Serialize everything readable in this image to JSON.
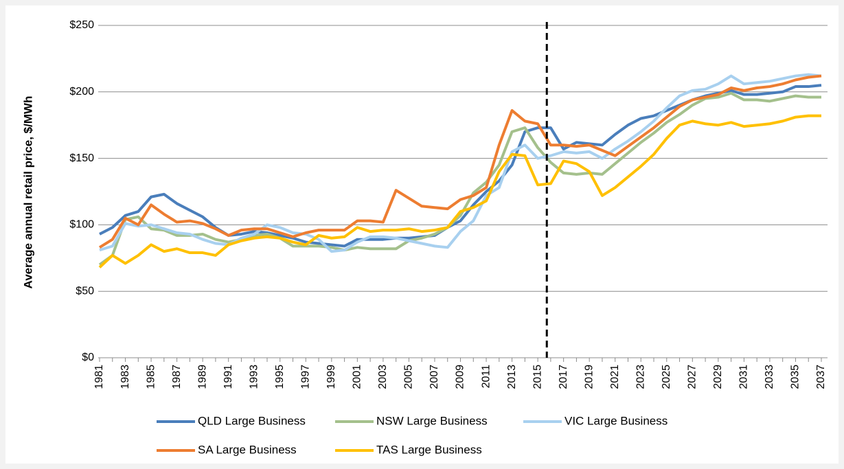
{
  "chart_data": {
    "type": "line",
    "y_label": "Average annual retail price, $/MWh",
    "x": [
      1981,
      1982,
      1983,
      1984,
      1985,
      1986,
      1987,
      1988,
      1989,
      1990,
      1991,
      1992,
      1993,
      1994,
      1995,
      1996,
      1997,
      1998,
      1999,
      2000,
      2001,
      2002,
      2003,
      2004,
      2005,
      2006,
      2007,
      2008,
      2009,
      2010,
      2011,
      2012,
      2013,
      2014,
      2015,
      2016,
      2017,
      2018,
      2019,
      2020,
      2021,
      2022,
      2023,
      2024,
      2025,
      2026,
      2027,
      2028,
      2029,
      2030,
      2031,
      2032,
      2033,
      2034,
      2035,
      2036,
      2037
    ],
    "xlim": [
      1981,
      2037
    ],
    "xticks": [
      1981,
      1983,
      1985,
      1987,
      1989,
      1991,
      1993,
      1995,
      1997,
      1999,
      2001,
      2003,
      2005,
      2007,
      2009,
      2011,
      2013,
      2015,
      2017,
      2019,
      2021,
      2023,
      2025,
      2027,
      2029,
      2031,
      2033,
      2035,
      2037
    ],
    "ylim": [
      0,
      250
    ],
    "yticks": [
      {
        "value": 0,
        "label": "$0"
      },
      {
        "value": 50,
        "label": "$50"
      },
      {
        "value": 100,
        "label": "$100"
      },
      {
        "value": 150,
        "label": "$150"
      },
      {
        "value": 200,
        "label": "$200"
      },
      {
        "value": 250,
        "label": "$250"
      }
    ],
    "grid": true,
    "vline": 2015.7,
    "series": [
      {
        "name": "QLD Large Business",
        "color": "#4a7ebb",
        "values": [
          93,
          98,
          107,
          110,
          121,
          123,
          116,
          111,
          106,
          98,
          92,
          93,
          95,
          94,
          92,
          90,
          87,
          86,
          85,
          84,
          89,
          89,
          89,
          90,
          90,
          91,
          92,
          98,
          103,
          115,
          125,
          133,
          145,
          170,
          173,
          173,
          157,
          162,
          161,
          160,
          168,
          175,
          180,
          182,
          186,
          190,
          194,
          197,
          199,
          201,
          198,
          198,
          199,
          200,
          204,
          204,
          205
        ]
      },
      {
        "name": "NSW Large Business",
        "color": "#a4c08c",
        "values": [
          70,
          77,
          104,
          106,
          97,
          96,
          92,
          92,
          93,
          89,
          87,
          89,
          92,
          93,
          90,
          84,
          84,
          84,
          83,
          81,
          83,
          82,
          82,
          82,
          88,
          90,
          93,
          98,
          107,
          124,
          132,
          145,
          170,
          173,
          158,
          147,
          139,
          138,
          139,
          138,
          146,
          154,
          162,
          169,
          177,
          183,
          190,
          195,
          196,
          199,
          194,
          194,
          193,
          195,
          197,
          196,
          196
        ]
      },
      {
        "name": "VIC Large Business",
        "color": "#a8d0ef",
        "values": [
          81,
          84,
          101,
          99,
          100,
          97,
          94,
          93,
          89,
          86,
          85,
          90,
          93,
          100,
          98,
          94,
          93,
          89,
          80,
          81,
          87,
          91,
          91,
          90,
          88,
          86,
          84,
          83,
          95,
          103,
          122,
          128,
          155,
          160,
          150,
          152,
          155,
          154,
          155,
          150,
          157,
          163,
          170,
          178,
          188,
          197,
          201,
          202,
          206,
          212,
          206,
          207,
          208,
          210,
          212,
          213,
          212
        ]
      },
      {
        "name": "SA Large Business",
        "color": "#ed7d31",
        "values": [
          83,
          89,
          105,
          100,
          115,
          108,
          102,
          103,
          101,
          97,
          92,
          96,
          97,
          97,
          94,
          91,
          94,
          96,
          96,
          96,
          103,
          103,
          102,
          126,
          120,
          114,
          113,
          112,
          119,
          122,
          128,
          160,
          186,
          178,
          176,
          160,
          160,
          159,
          160,
          156,
          152,
          159,
          166,
          173,
          181,
          189,
          194,
          196,
          198,
          203,
          201,
          203,
          204,
          206,
          209,
          211,
          212
        ]
      },
      {
        "name": "TAS Large Business",
        "color": "#ffc000",
        "values": [
          68,
          77,
          71,
          77,
          85,
          80,
          82,
          79,
          79,
          77,
          85,
          88,
          90,
          91,
          90,
          87,
          85,
          92,
          90,
          91,
          98,
          95,
          96,
          96,
          97,
          95,
          96,
          98,
          110,
          113,
          118,
          140,
          153,
          152,
          130,
          131,
          148,
          146,
          140,
          122,
          128,
          136,
          144,
          153,
          165,
          175,
          178,
          176,
          175,
          177,
          174,
          175,
          176,
          178,
          181,
          182,
          182
        ]
      }
    ]
  }
}
